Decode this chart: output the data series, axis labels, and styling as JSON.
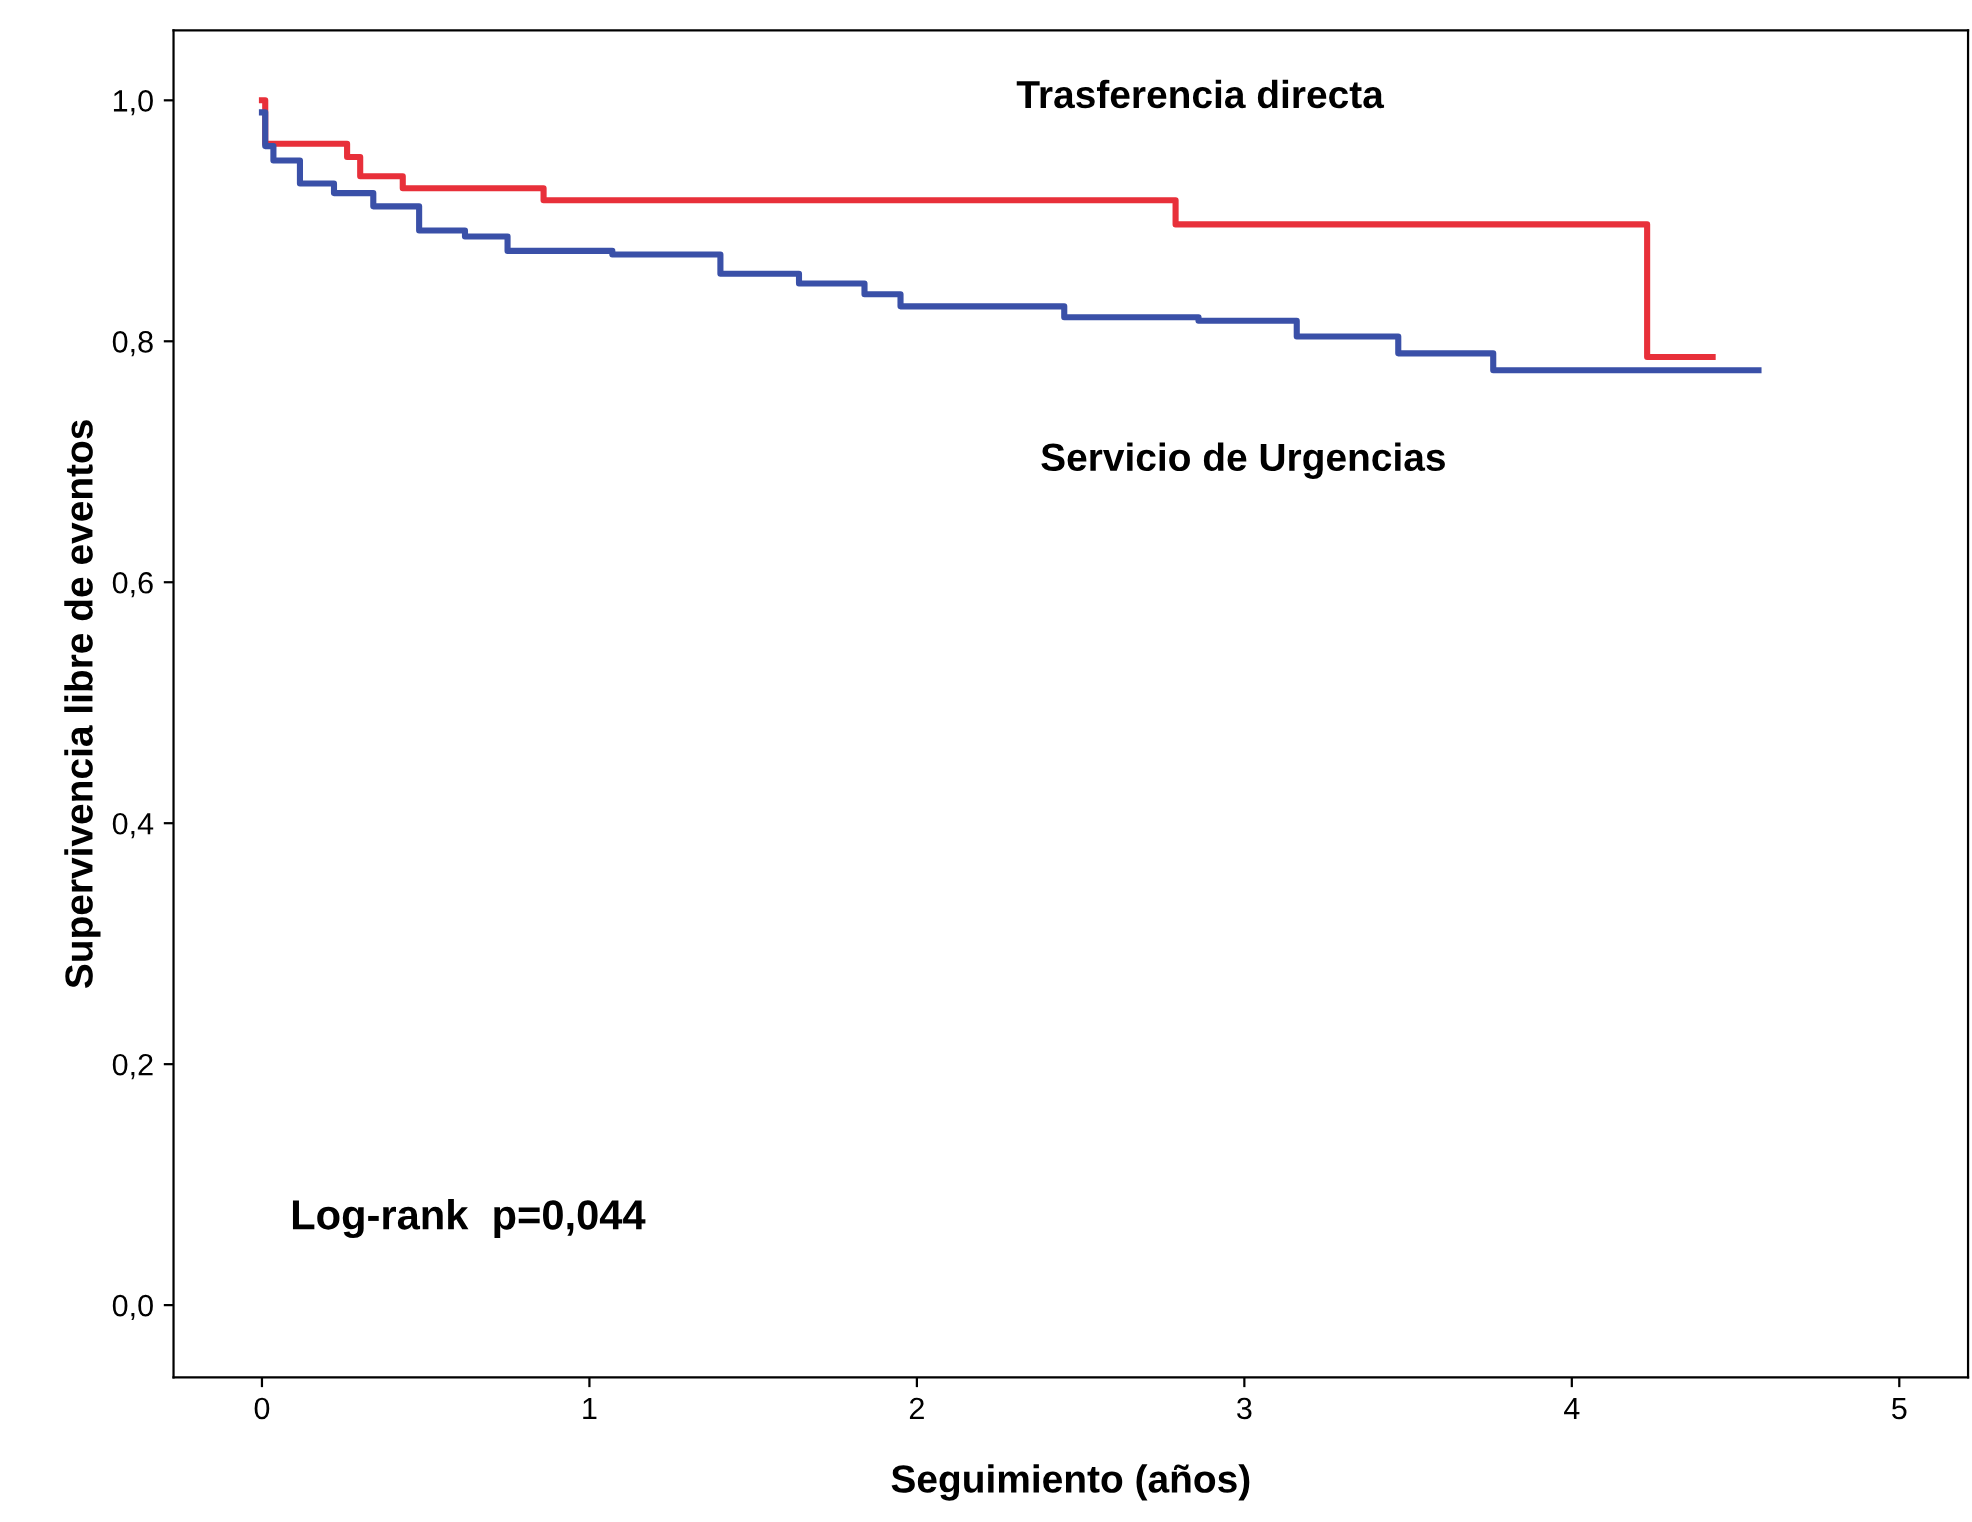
{
  "chart_data": {
    "type": "step",
    "xlabel": "Seguimiento (años)",
    "ylabel": "Supervivencia libre de eventos",
    "xlim": [
      -0.27,
      5.21
    ],
    "ylim": [
      -0.06,
      1.058
    ],
    "xticks": [
      0,
      1,
      2,
      3,
      4,
      5
    ],
    "yticks": [
      {
        "value": 0,
        "label": "0,0"
      },
      {
        "value": 0.2,
        "label": "0,2"
      },
      {
        "value": 0.4,
        "label": "0,4"
      },
      {
        "value": 0.6,
        "label": "0,6"
      },
      {
        "value": 0.8,
        "label": "0,8"
      },
      {
        "value": 1.0,
        "label": "1,0"
      }
    ],
    "grid": false,
    "legend": false,
    "series": [
      {
        "name": "Trasferencia directa",
        "color": "#e8303a",
        "x": [
          0,
          0.01,
          0.26,
          0.3,
          0.43,
          0.86,
          2.79,
          4.23,
          4.43
        ],
        "values": [
          1.0,
          0.964,
          0.953,
          0.937,
          0.927,
          0.917,
          0.897,
          0.787,
          0.787
        ]
      },
      {
        "name": "Servicio de Urgencias",
        "color": "#3a50a8",
        "x": [
          0,
          0.01,
          0.035,
          0.116,
          0.22,
          0.34,
          0.48,
          0.62,
          0.75,
          1.07,
          1.4,
          1.64,
          1.84,
          1.95,
          2.45,
          2.86,
          3.16,
          3.47,
          3.76,
          4.57
        ],
        "values": [
          0.99,
          0.962,
          0.95,
          0.931,
          0.923,
          0.912,
          0.892,
          0.887,
          0.875,
          0.872,
          0.856,
          0.848,
          0.839,
          0.829,
          0.82,
          0.817,
          0.804,
          0.79,
          0.776,
          0.776
        ]
      }
    ],
    "annotations": [
      "Log-rank  p=0,044"
    ]
  }
}
